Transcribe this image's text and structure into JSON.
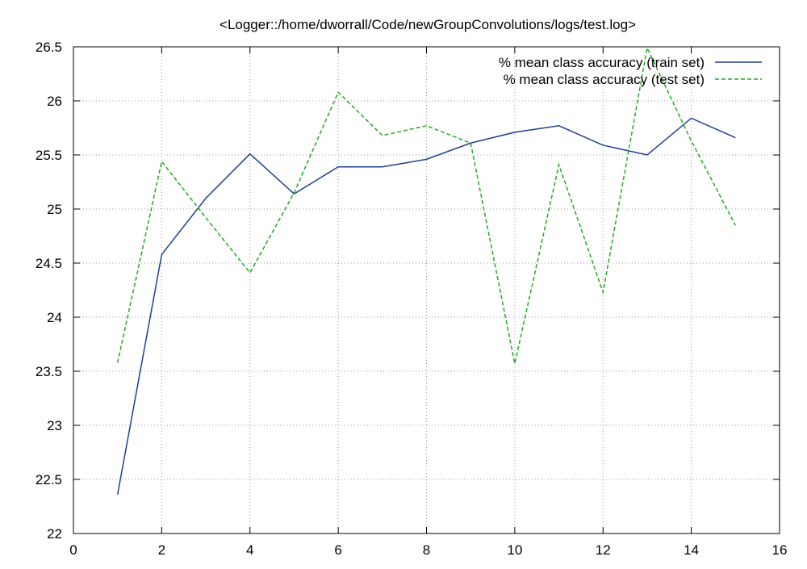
{
  "chart_data": {
    "type": "line",
    "title": "<Logger::/home/dworrall/Code/newGroupConvolutions/logs/test.log>",
    "xlabel": "",
    "ylabel": "",
    "xlim": [
      0,
      16
    ],
    "ylim": [
      22,
      26.5
    ],
    "xticks": [
      "0",
      "2",
      "4",
      "6",
      "8",
      "10",
      "12",
      "14",
      "16"
    ],
    "yticks": [
      "22",
      "22.5",
      "23",
      "23.5",
      "24",
      "24.5",
      "25",
      "25.5",
      "26",
      "26.5"
    ],
    "grid": true,
    "legend_position": "top-right",
    "x": [
      1,
      2,
      3,
      4,
      5,
      6,
      7,
      8,
      9,
      10,
      11,
      12,
      13,
      14,
      15
    ],
    "series": [
      {
        "name": "% mean class accuracy (train set)",
        "color": "#1f3f8f",
        "style": "solid",
        "values": [
          22.36,
          24.58,
          25.1,
          25.51,
          25.14,
          25.39,
          25.39,
          25.46,
          25.61,
          25.71,
          25.77,
          25.59,
          25.5,
          25.84,
          25.66
        ]
      },
      {
        "name": "% mean class accuracy (test set)",
        "color": "#22aa22",
        "style": "dashed",
        "values": [
          23.58,
          25.44,
          24.92,
          24.41,
          25.15,
          26.08,
          25.68,
          25.77,
          25.61,
          23.57,
          25.41,
          24.23,
          26.49,
          25.63,
          24.85
        ]
      }
    ]
  }
}
